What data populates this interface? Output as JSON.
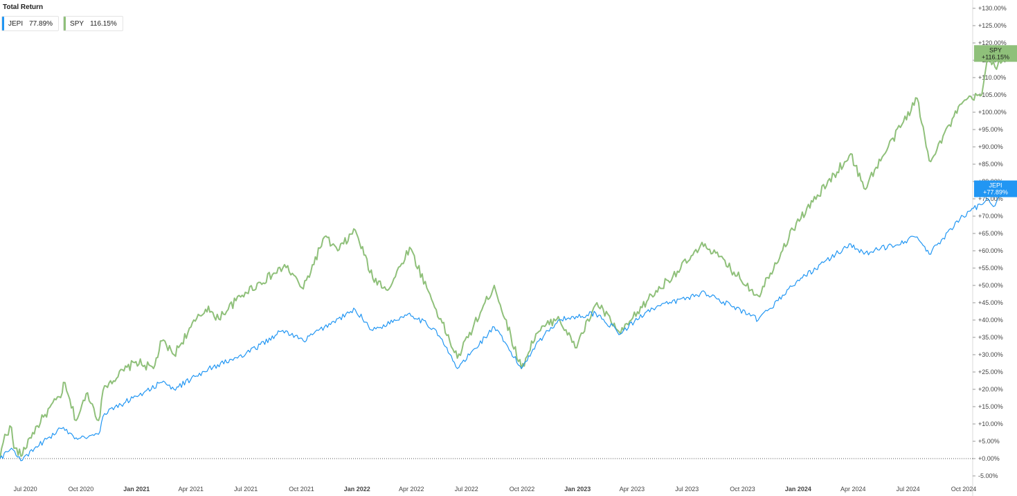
{
  "title": "Total Return",
  "legend": [
    {
      "name": "JEPI",
      "value": "77.89%",
      "color": "#2196f3"
    },
    {
      "name": "SPY",
      "value": "116.15%",
      "color": "#8fc07a"
    }
  ],
  "tags": {
    "spy": {
      "name": "SPY",
      "value": "+116.15%"
    },
    "jepi": {
      "name": "JEPI",
      "value": "+77.89%"
    }
  },
  "y_ticks": [
    "+130.00%",
    "+125.00%",
    "+120.00%",
    "+115.00%",
    "+110.00%",
    "+105.00%",
    "+100.00%",
    "+95.00%",
    "+90.00%",
    "+85.00%",
    "+80.00%",
    "+75.00%",
    "+70.00%",
    "+65.00%",
    "+60.00%",
    "+55.00%",
    "+50.00%",
    "+45.00%",
    "+40.00%",
    "+35.00%",
    "+30.00%",
    "+25.00%",
    "+20.00%",
    "+15.00%",
    "+10.00%",
    "+5.00%",
    "+0.00%",
    "-5.00%"
  ],
  "x_ticks": [
    {
      "label": "Jul 2020",
      "date": "2020-07-01",
      "bold": false
    },
    {
      "label": "Oct 2020",
      "date": "2020-10-01",
      "bold": false
    },
    {
      "label": "Jan 2021",
      "date": "2021-01-01",
      "bold": true
    },
    {
      "label": "Apr 2021",
      "date": "2021-04-01",
      "bold": false
    },
    {
      "label": "Jul 2021",
      "date": "2021-07-01",
      "bold": false
    },
    {
      "label": "Oct 2021",
      "date": "2021-10-01",
      "bold": false
    },
    {
      "label": "Jan 2022",
      "date": "2022-01-01",
      "bold": true
    },
    {
      "label": "Apr 2022",
      "date": "2022-04-01",
      "bold": false
    },
    {
      "label": "Jul 2022",
      "date": "2022-07-01",
      "bold": false
    },
    {
      "label": "Oct 2022",
      "date": "2022-10-01",
      "bold": false
    },
    {
      "label": "Jan 2023",
      "date": "2023-01-01",
      "bold": true
    },
    {
      "label": "Apr 2023",
      "date": "2023-04-01",
      "bold": false
    },
    {
      "label": "Jul 2023",
      "date": "2023-07-01",
      "bold": false
    },
    {
      "label": "Oct 2023",
      "date": "2023-10-01",
      "bold": false
    },
    {
      "label": "Jan 2024",
      "date": "2024-01-01",
      "bold": true
    },
    {
      "label": "Apr 2024",
      "date": "2024-04-01",
      "bold": false
    },
    {
      "label": "Jul 2024",
      "date": "2024-07-01",
      "bold": false
    },
    {
      "label": "Oct 2024",
      "date": "2024-10-01",
      "bold": false
    }
  ],
  "chart_data": {
    "type": "line",
    "title": "Total Return",
    "xlabel": "",
    "ylabel": "",
    "ylim": [
      -5,
      130
    ],
    "xlim": [
      "2020-05-20",
      "2024-12-31"
    ],
    "grid": false,
    "legend_position": "top-left",
    "baseline": 0,
    "series": [
      {
        "name": "SPY",
        "color": "#8fc07a",
        "points": [
          [
            "2020-05-20",
            0
          ],
          [
            "2020-05-28",
            7
          ],
          [
            "2020-06-08",
            9
          ],
          [
            "2020-06-12",
            3
          ],
          [
            "2020-06-26",
            1
          ],
          [
            "2020-07-08",
            6
          ],
          [
            "2020-07-31",
            12
          ],
          [
            "2020-08-31",
            19
          ],
          [
            "2020-09-02",
            22
          ],
          [
            "2020-09-23",
            11
          ],
          [
            "2020-10-12",
            19
          ],
          [
            "2020-10-30",
            11
          ],
          [
            "2020-11-09",
            21
          ],
          [
            "2020-12-31",
            28
          ],
          [
            "2021-01-29",
            26
          ],
          [
            "2021-02-12",
            34
          ],
          [
            "2021-03-04",
            30
          ],
          [
            "2021-04-01",
            38
          ],
          [
            "2021-04-30",
            44
          ],
          [
            "2021-05-12",
            40
          ],
          [
            "2021-06-30",
            48
          ],
          [
            "2021-08-31",
            55
          ],
          [
            "2021-09-03",
            56
          ],
          [
            "2021-10-04",
            49
          ],
          [
            "2021-11-08",
            64
          ],
          [
            "2021-11-30",
            60
          ],
          [
            "2021-12-29",
            66
          ],
          [
            "2022-01-27",
            52
          ],
          [
            "2022-02-23",
            49
          ],
          [
            "2022-03-29",
            61
          ],
          [
            "2022-05-12",
            43
          ],
          [
            "2022-06-16",
            29
          ],
          [
            "2022-08-16",
            50
          ],
          [
            "2022-09-30",
            26
          ],
          [
            "2022-10-24",
            36
          ],
          [
            "2022-11-30",
            41
          ],
          [
            "2022-12-28",
            32
          ],
          [
            "2023-02-02",
            45
          ],
          [
            "2023-03-13",
            36
          ],
          [
            "2023-04-28",
            46
          ],
          [
            "2023-07-31",
            62
          ],
          [
            "2023-10-27",
            47
          ],
          [
            "2023-12-29",
            68
          ],
          [
            "2024-03-28",
            88
          ],
          [
            "2024-04-19",
            78
          ],
          [
            "2024-07-16",
            104
          ],
          [
            "2024-08-05",
            86
          ],
          [
            "2024-09-30",
            103
          ],
          [
            "2024-10-31",
            105
          ],
          [
            "2024-11-11",
            117
          ],
          [
            "2024-11-22",
            113
          ],
          [
            "2024-12-06",
            116.15
          ]
        ]
      },
      {
        "name": "JEPI",
        "color": "#2196f3",
        "points": [
          [
            "2020-05-20",
            0
          ],
          [
            "2020-06-08",
            3
          ],
          [
            "2020-06-26",
            -0.5
          ],
          [
            "2020-07-31",
            5
          ],
          [
            "2020-09-02",
            9
          ],
          [
            "2020-09-23",
            6
          ],
          [
            "2020-10-30",
            7
          ],
          [
            "2020-11-09",
            13
          ],
          [
            "2020-12-31",
            18
          ],
          [
            "2021-02-12",
            22
          ],
          [
            "2021-03-04",
            20
          ],
          [
            "2021-04-30",
            26
          ],
          [
            "2021-06-30",
            30
          ],
          [
            "2021-08-31",
            37
          ],
          [
            "2021-10-04",
            34
          ],
          [
            "2021-11-08",
            38
          ],
          [
            "2021-12-29",
            43
          ],
          [
            "2022-01-27",
            37
          ],
          [
            "2022-03-29",
            42
          ],
          [
            "2022-05-12",
            37
          ],
          [
            "2022-06-16",
            26
          ],
          [
            "2022-08-16",
            38
          ],
          [
            "2022-09-30",
            26
          ],
          [
            "2022-10-24",
            33
          ],
          [
            "2022-11-30",
            40
          ],
          [
            "2023-01-31",
            42
          ],
          [
            "2023-03-13",
            36
          ],
          [
            "2023-04-28",
            43
          ],
          [
            "2023-07-31",
            48
          ],
          [
            "2023-10-27",
            40
          ],
          [
            "2023-12-29",
            51
          ],
          [
            "2024-03-28",
            62
          ],
          [
            "2024-04-19",
            59
          ],
          [
            "2024-07-16",
            64
          ],
          [
            "2024-08-05",
            59
          ],
          [
            "2024-09-30",
            70
          ],
          [
            "2024-11-11",
            75
          ],
          [
            "2024-11-22",
            73
          ],
          [
            "2024-12-06",
            77.89
          ]
        ]
      }
    ]
  }
}
